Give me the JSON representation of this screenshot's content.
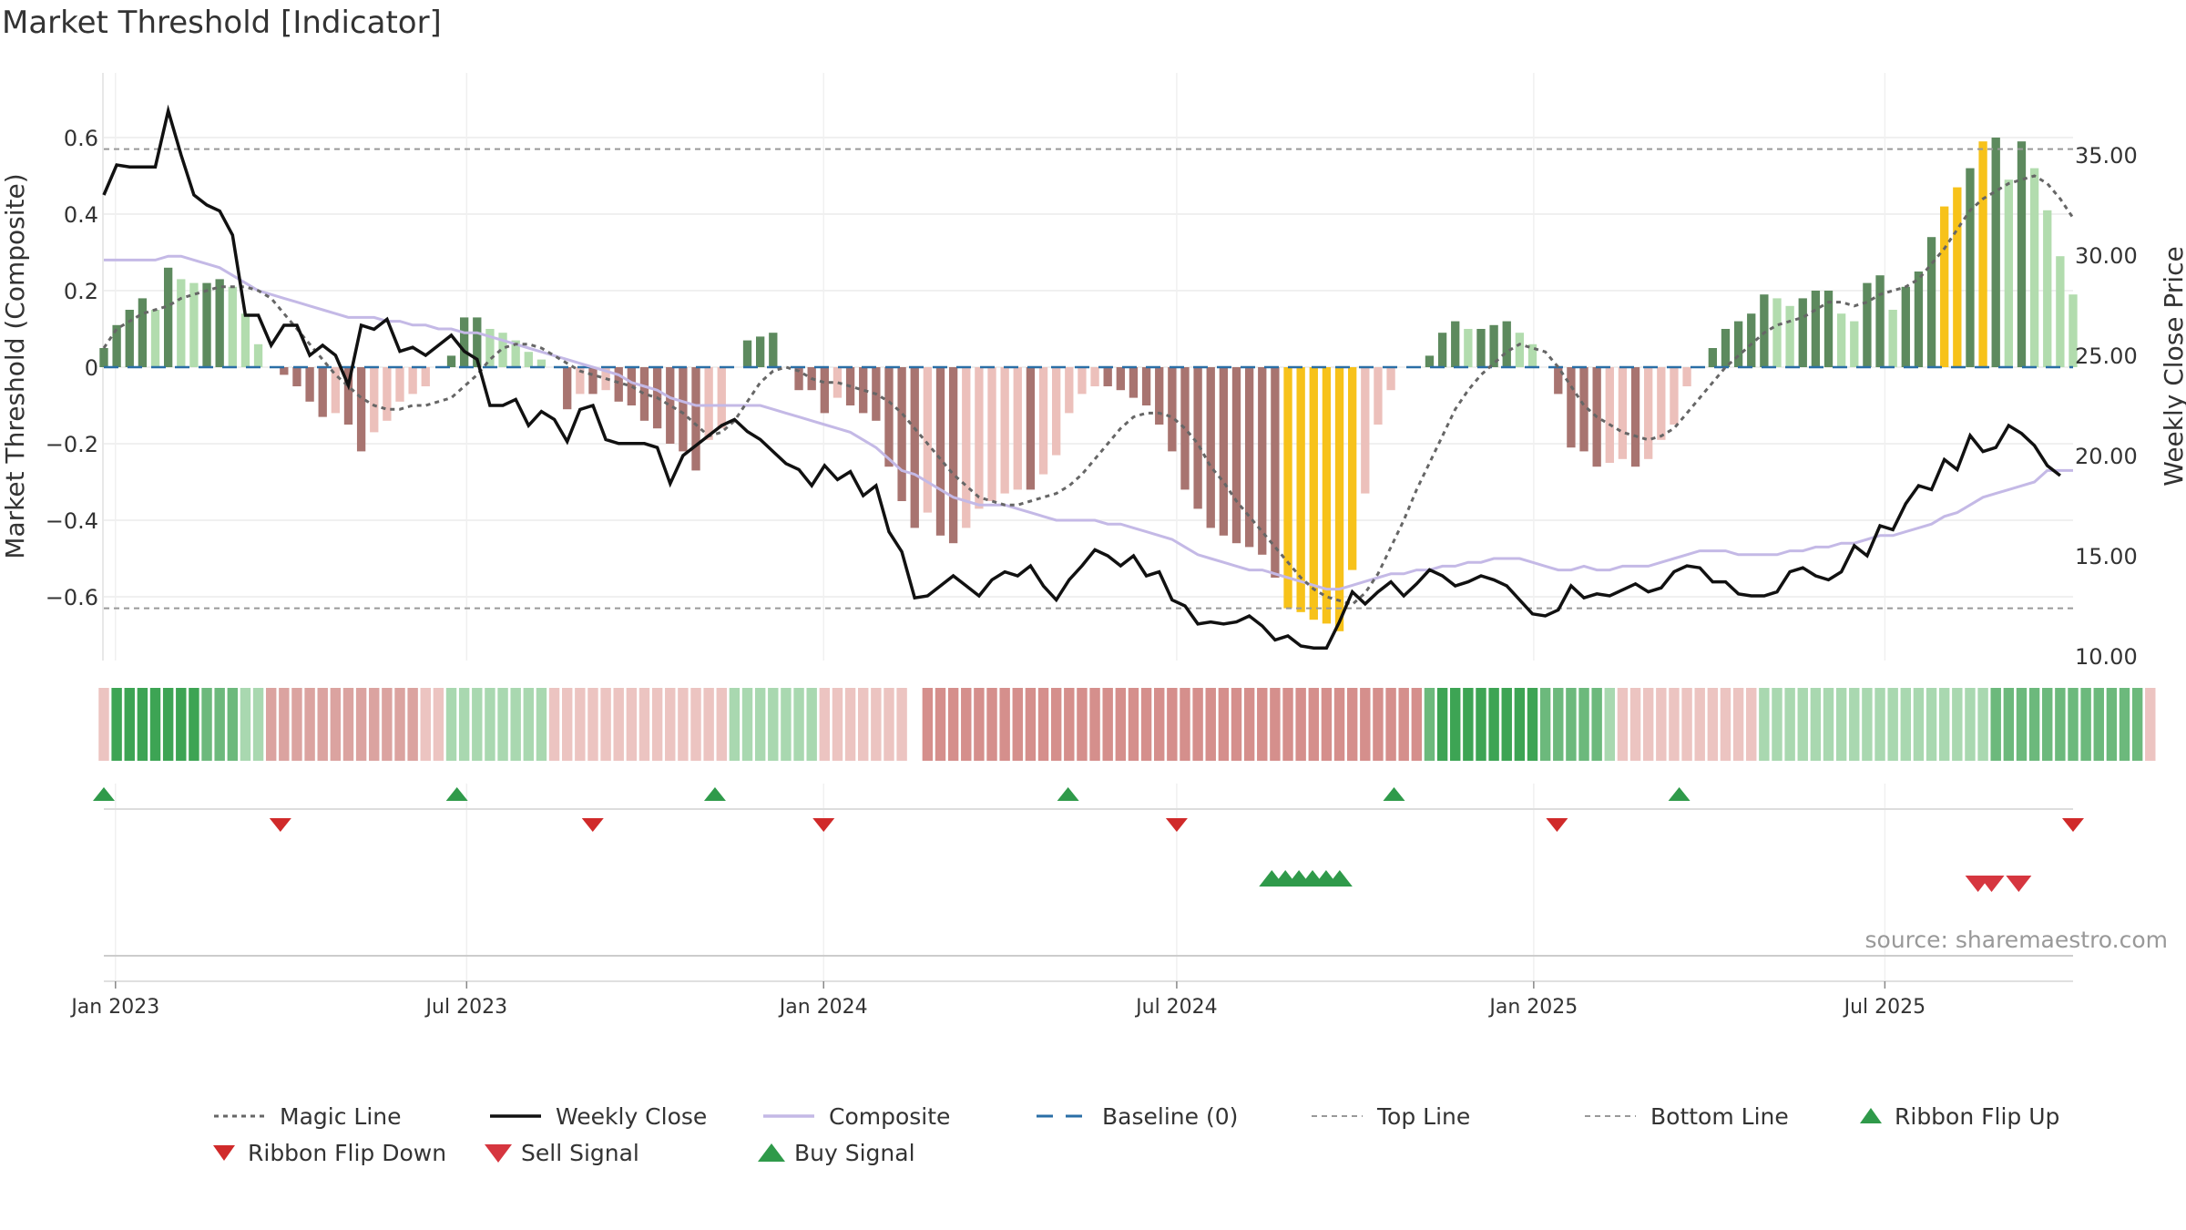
{
  "chart_data": {
    "type": "bar",
    "title": "Market Threshold [Indicator]",
    "ylabel": "Market Threshold (Composite)",
    "y2label": "Weekly Close Price",
    "source": "source: sharemaestro.com",
    "ylim": [
      -0.78,
      0.78
    ],
    "y2lim": [
      10,
      38
    ],
    "yticks": [
      0.6,
      0.4,
      0.2,
      0,
      -0.2,
      -0.4,
      -0.6
    ],
    "ytick_labels": [
      "0.6",
      "0.4",
      "0.2",
      "0",
      "−0.2",
      "−0.4",
      "−0.6"
    ],
    "y2ticks": [
      35,
      30,
      25,
      20,
      15,
      10
    ],
    "y2tick_labels": [
      "35.00",
      "30.00",
      "25.00",
      "20.00",
      "15.00",
      "10.00"
    ],
    "x_start": "2022-12-26",
    "x_end": "2025-10-06",
    "xticks": [
      "2023-01-01",
      "2023-07-01",
      "2024-01-01",
      "2024-07-01",
      "2025-01-01",
      "2025-07-01"
    ],
    "xtick_labels": [
      "Jan 2023",
      "Jul 2023",
      "Jan 2024",
      "Jul 2024",
      "Jan 2025",
      "Jul 2025"
    ],
    "grid": true,
    "legend_position": "bottom",
    "top_line": 0.57,
    "bottom_line": -0.63,
    "colors": {
      "pos_strong": "#5d8a5e",
      "pos_light": "#b2dcae",
      "neg_strong": "#a87470",
      "neg_light": "#ecc0bb",
      "extreme": "#f7c21a",
      "close": "#111111",
      "composite": "#c4b9e6",
      "magic": "#666666",
      "baseline": "#2a6ea6",
      "flip_up": "#2f9a4a",
      "flip_down": "#d02a2a",
      "buy": "#2f9a4a",
      "sell": "#d6363f"
    },
    "bars": [
      0.05,
      0.11,
      0.15,
      0.18,
      0.15,
      0.26,
      0.23,
      0.22,
      0.22,
      0.23,
      0.21,
      0.14,
      0.06,
      0,
      -0.02,
      -0.05,
      -0.09,
      -0.13,
      -0.12,
      -0.15,
      -0.22,
      -0.17,
      -0.14,
      -0.09,
      -0.07,
      -0.05,
      0,
      0.03,
      0.13,
      0.13,
      0.1,
      0.09,
      0.07,
      0.04,
      0.02,
      0,
      -0.11,
      -0.07,
      -0.07,
      -0.06,
      -0.09,
      -0.1,
      -0.14,
      -0.16,
      -0.2,
      -0.22,
      -0.27,
      -0.19,
      -0.16,
      0,
      0.07,
      0.08,
      0.09,
      0,
      -0.06,
      -0.06,
      -0.12,
      -0.08,
      -0.1,
      -0.12,
      -0.14,
      -0.26,
      -0.35,
      -0.42,
      -0.38,
      -0.44,
      -0.46,
      -0.42,
      -0.37,
      -0.35,
      -0.33,
      -0.32,
      -0.32,
      -0.28,
      -0.23,
      -0.12,
      -0.07,
      -0.05,
      -0.05,
      -0.06,
      -0.08,
      -0.1,
      -0.15,
      -0.22,
      -0.32,
      -0.37,
      -0.42,
      -0.44,
      -0.46,
      -0.47,
      -0.49,
      -0.55,
      -0.63,
      -0.64,
      -0.66,
      -0.67,
      -0.69,
      -0.53,
      -0.33,
      -0.15,
      -0.06,
      0,
      0,
      0.03,
      0.09,
      0.12,
      0.1,
      0.1,
      0.11,
      0.12,
      0.09,
      0.06,
      0,
      -0.07,
      -0.21,
      -0.22,
      -0.26,
      -0.25,
      -0.24,
      -0.26,
      -0.24,
      -0.19,
      -0.15,
      -0.05,
      0,
      0.05,
      0.1,
      0.12,
      0.14,
      0.19,
      0.18,
      0.16,
      0.18,
      0.2,
      0.2,
      0.14,
      0.12,
      0.22,
      0.24,
      0.15,
      0.21,
      0.25,
      0.34,
      0.42,
      0.47,
      0.52,
      0.59,
      0.6,
      0.49,
      0.59,
      0.52,
      0.41,
      0.29,
      0.19
    ],
    "extreme_bars": [
      92,
      93,
      94,
      95,
      96,
      97,
      143,
      144,
      146
    ],
    "weekly_close": [
      33.0,
      34.5,
      34.4,
      34.4,
      34.4,
      37.2,
      35.0,
      33.0,
      32.5,
      32.2,
      31.0,
      27.0,
      27.0,
      25.5,
      26.5,
      26.5,
      25.0,
      25.5,
      25.0,
      23.5,
      26.5,
      26.3,
      26.8,
      25.2,
      25.4,
      25.0,
      25.5,
      26.0,
      25.2,
      24.8,
      22.5,
      22.5,
      22.8,
      21.5,
      22.2,
      21.8,
      20.7,
      22.3,
      22.5,
      20.8,
      20.6,
      20.6,
      20.6,
      20.4,
      18.6,
      20.0,
      20.5,
      21.0,
      21.5,
      21.8,
      21.2,
      20.8,
      20.2,
      19.6,
      19.3,
      18.5,
      19.5,
      18.8,
      19.2,
      18.0,
      18.5,
      16.2,
      15.2,
      12.9,
      13.0,
      13.5,
      14.0,
      13.5,
      13.0,
      13.8,
      14.2,
      14.0,
      14.5,
      13.5,
      12.8,
      13.8,
      14.5,
      15.3,
      15.0,
      14.5,
      15.0,
      14.0,
      14.2,
      12.8,
      12.5,
      11.6,
      11.7,
      11.6,
      11.7,
      12.0,
      11.5,
      10.8,
      11.0,
      10.5,
      10.4,
      10.4,
      11.7,
      13.2,
      12.6,
      13.2,
      13.7,
      13.0,
      13.6,
      14.3,
      14.0,
      13.5,
      13.7,
      14.0,
      13.8,
      13.5,
      12.8,
      12.1,
      12.0,
      12.3,
      13.5,
      12.9,
      13.1,
      13.0,
      13.3,
      13.6,
      13.2,
      13.4,
      14.2,
      14.5,
      14.4,
      13.7,
      13.7,
      13.1,
      13.0,
      13.0,
      13.2,
      14.2,
      14.4,
      14.0,
      13.8,
      14.2,
      15.5,
      15.0,
      16.5,
      16.3,
      17.6,
      18.5,
      18.3,
      19.8,
      19.3,
      21.0,
      20.2,
      20.4,
      21.5,
      21.1,
      20.5,
      19.5,
      19.0
    ],
    "composite": [
      0.28,
      0.28,
      0.28,
      0.28,
      0.28,
      0.29,
      0.29,
      0.28,
      0.27,
      0.26,
      0.24,
      0.22,
      0.2,
      0.19,
      0.18,
      0.17,
      0.16,
      0.15,
      0.14,
      0.13,
      0.13,
      0.13,
      0.12,
      0.12,
      0.11,
      0.11,
      0.1,
      0.1,
      0.09,
      0.09,
      0.08,
      0.07,
      0.06,
      0.05,
      0.04,
      0.03,
      0.02,
      0.01,
      0.0,
      -0.01,
      -0.02,
      -0.04,
      -0.05,
      -0.06,
      -0.08,
      -0.09,
      -0.1,
      -0.1,
      -0.1,
      -0.1,
      -0.1,
      -0.1,
      -0.11,
      -0.12,
      -0.13,
      -0.14,
      -0.15,
      -0.16,
      -0.17,
      -0.19,
      -0.21,
      -0.24,
      -0.27,
      -0.28,
      -0.3,
      -0.32,
      -0.34,
      -0.35,
      -0.36,
      -0.36,
      -0.36,
      -0.37,
      -0.38,
      -0.39,
      -0.4,
      -0.4,
      -0.4,
      -0.4,
      -0.41,
      -0.41,
      -0.42,
      -0.43,
      -0.44,
      -0.45,
      -0.47,
      -0.49,
      -0.5,
      -0.51,
      -0.52,
      -0.53,
      -0.53,
      -0.54,
      -0.55,
      -0.56,
      -0.57,
      -0.58,
      -0.58,
      -0.57,
      -0.56,
      -0.55,
      -0.54,
      -0.54,
      -0.53,
      -0.53,
      -0.52,
      -0.52,
      -0.51,
      -0.51,
      -0.5,
      -0.5,
      -0.5,
      -0.51,
      -0.52,
      -0.53,
      -0.53,
      -0.52,
      -0.53,
      -0.53,
      -0.52,
      -0.52,
      -0.52,
      -0.51,
      -0.5,
      -0.49,
      -0.48,
      -0.48,
      -0.48,
      -0.49,
      -0.49,
      -0.49,
      -0.49,
      -0.48,
      -0.48,
      -0.47,
      -0.47,
      -0.46,
      -0.46,
      -0.45,
      -0.44,
      -0.44,
      -0.43,
      -0.42,
      -0.41,
      -0.39,
      -0.38,
      -0.36,
      -0.34,
      -0.33,
      -0.32,
      -0.31,
      -0.3,
      -0.27,
      -0.27,
      -0.27
    ],
    "magic_line": [
      0.05,
      0.1,
      0.12,
      0.14,
      0.15,
      0.16,
      0.18,
      0.19,
      0.2,
      0.21,
      0.21,
      0.21,
      0.2,
      0.18,
      0.14,
      0.1,
      0.06,
      0.02,
      -0.02,
      -0.05,
      -0.08,
      -0.1,
      -0.11,
      -0.11,
      -0.1,
      -0.1,
      -0.09,
      -0.08,
      -0.05,
      -0.02,
      0.02,
      0.05,
      0.06,
      0.06,
      0.05,
      0.03,
      0.01,
      -0.01,
      -0.02,
      -0.03,
      -0.04,
      -0.05,
      -0.07,
      -0.08,
      -0.1,
      -0.12,
      -0.15,
      -0.18,
      -0.17,
      -0.14,
      -0.09,
      -0.04,
      -0.01,
      0.0,
      -0.01,
      -0.03,
      -0.04,
      -0.04,
      -0.05,
      -0.06,
      -0.07,
      -0.09,
      -0.12,
      -0.16,
      -0.2,
      -0.24,
      -0.28,
      -0.31,
      -0.34,
      -0.35,
      -0.36,
      -0.36,
      -0.35,
      -0.34,
      -0.33,
      -0.31,
      -0.28,
      -0.24,
      -0.2,
      -0.16,
      -0.13,
      -0.12,
      -0.12,
      -0.13,
      -0.16,
      -0.2,
      -0.26,
      -0.3,
      -0.35,
      -0.39,
      -0.43,
      -0.47,
      -0.51,
      -0.55,
      -0.58,
      -0.6,
      -0.61,
      -0.62,
      -0.59,
      -0.54,
      -0.47,
      -0.4,
      -0.32,
      -0.25,
      -0.18,
      -0.11,
      -0.06,
      -0.02,
      0.01,
      0.04,
      0.06,
      0.05,
      0.04,
      0.0,
      -0.05,
      -0.1,
      -0.13,
      -0.15,
      -0.17,
      -0.18,
      -0.19,
      -0.18,
      -0.16,
      -0.12,
      -0.08,
      -0.04,
      0.0,
      0.03,
      0.06,
      0.09,
      0.11,
      0.12,
      0.13,
      0.15,
      0.17,
      0.17,
      0.16,
      0.17,
      0.19,
      0.2,
      0.21,
      0.23,
      0.27,
      0.31,
      0.36,
      0.41,
      0.44,
      0.46,
      0.48,
      0.49,
      0.5,
      0.48,
      0.44,
      0.39
    ],
    "ribbon": [
      -1,
      3,
      3,
      3,
      3,
      3,
      3,
      3,
      2,
      2,
      2,
      1,
      1,
      -2,
      -2,
      -2,
      -2,
      -2,
      -2,
      -2,
      -2,
      -2,
      -2,
      -2,
      -2,
      -1,
      -1,
      1,
      1,
      1,
      1,
      1,
      1,
      1,
      1,
      -1,
      -1,
      -1,
      -1,
      -1,
      -1,
      -1,
      -1,
      -1,
      -1,
      -1,
      -1,
      -1,
      -1,
      1,
      1,
      1,
      1,
      1,
      1,
      1,
      -1,
      -1,
      -1,
      -1,
      -1,
      -1,
      -1,
      0,
      -3,
      -3,
      -3,
      -3,
      -3,
      -3,
      -3,
      -3,
      -3,
      -3,
      -3,
      -3,
      -3,
      -3,
      -3,
      -3,
      -3,
      -3,
      -3,
      -3,
      -3,
      -3,
      -3,
      -3,
      -3,
      -3,
      -3,
      -3,
      -3,
      -3,
      -3,
      -3,
      -3,
      -3,
      -3,
      -3,
      -3,
      -3,
      -3,
      2,
      3,
      3,
      3,
      3,
      3,
      3,
      3,
      3,
      2,
      2,
      2,
      2,
      2,
      1,
      -1,
      -1,
      -1,
      -1,
      -1,
      -1,
      -1,
      -1,
      -1,
      -1,
      -1,
      1,
      1,
      1,
      1,
      1,
      1,
      1,
      1,
      1,
      1,
      1,
      1,
      1,
      1,
      1,
      1,
      1,
      1,
      2,
      2,
      2,
      2,
      2,
      2,
      2,
      2,
      2,
      2,
      2,
      2,
      -1
    ],
    "ribbon_flip_up": [
      "2022-12-26",
      "2023-06-26",
      "2023-11-06",
      "2024-05-06",
      "2024-10-21",
      "2025-03-17"
    ],
    "ribbon_flip_down": [
      "2023-03-27",
      "2023-09-04",
      "2024-01-01",
      "2024-07-01",
      "2025-01-13",
      "2025-10-06"
    ],
    "buy_signals": [
      "2024-08-19",
      "2024-08-26",
      "2024-09-02",
      "2024-09-09",
      "2024-09-16",
      "2024-09-23"
    ],
    "sell_signals": [
      "2025-08-18",
      "2025-08-25",
      "2025-09-08"
    ],
    "legend": [
      "Magic Line",
      "Weekly Close",
      "Composite",
      "Baseline (0)",
      "Top Line",
      "Bottom Line",
      "Ribbon Flip Up",
      "Ribbon Flip Down",
      "Sell Signal",
      "Buy Signal"
    ]
  }
}
